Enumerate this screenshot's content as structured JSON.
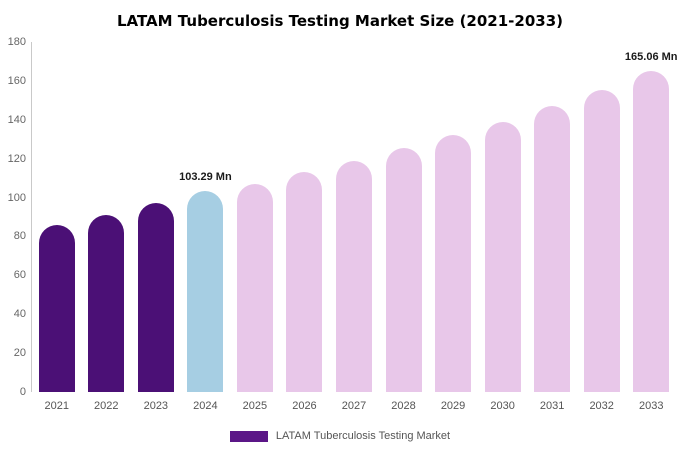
{
  "title": "LATAM Tuberculosis Testing Market Size (2021-2033)",
  "legend": {
    "label": "LATAM Tuberculosis Testing Market",
    "swatch_color": "#5b1687"
  },
  "colors": {
    "dark_purple": "#4b1076",
    "highlight_blue": "#a6cee3",
    "light_pink": "#e8c7e9"
  },
  "chart_data": {
    "type": "bar",
    "title": "LATAM Tuberculosis Testing Market Size (2021-2033)",
    "xlabel": "",
    "ylabel": "",
    "categories": [
      "2021",
      "2022",
      "2023",
      "2024",
      "2025",
      "2026",
      "2027",
      "2028",
      "2029",
      "2030",
      "2031",
      "2032",
      "2033"
    ],
    "values": [
      86,
      91,
      97,
      103.29,
      107,
      113,
      119,
      125.5,
      132,
      139,
      147,
      155.5,
      165.06
    ],
    "bar_colors": [
      "#4b1076",
      "#4b1076",
      "#4b1076",
      "#a6cee3",
      "#e8c7e9",
      "#e8c7e9",
      "#e8c7e9",
      "#e8c7e9",
      "#e8c7e9",
      "#e8c7e9",
      "#e8c7e9",
      "#e8c7e9",
      "#e8c7e9"
    ],
    "ylim": [
      0,
      180
    ],
    "yticks": [
      0,
      20,
      40,
      60,
      80,
      100,
      120,
      140,
      160,
      180
    ],
    "grid": false,
    "legend_position": "bottom",
    "annotations": [
      {
        "category": "2024",
        "text": "103.29 Mn"
      },
      {
        "category": "2033",
        "text": "165.06 Mn"
      }
    ]
  }
}
